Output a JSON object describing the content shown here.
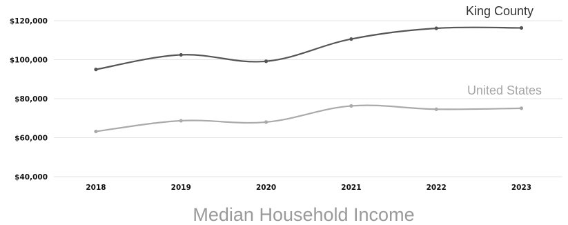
{
  "chart_data": {
    "type": "line",
    "title": "Median Household Income",
    "xlabel": "",
    "ylabel": "",
    "categories": [
      "2018",
      "2019",
      "2020",
      "2021",
      "2022",
      "2023"
    ],
    "ylim": [
      40000,
      120000
    ],
    "yticks": [
      40000,
      60000,
      80000,
      100000,
      120000
    ],
    "ytick_labels": [
      "$40,000",
      "$60,000",
      "$80,000",
      "$100,000",
      "$120,000"
    ],
    "grid": true,
    "legend": "inline labels at right end of lines",
    "series": [
      {
        "name": "King County",
        "values": [
          95000,
          102500,
          99200,
          110600,
          116100,
          116300
        ],
        "color": "#555555"
      },
      {
        "name": "United States",
        "values": [
          63200,
          68700,
          68000,
          76300,
          74600,
          75100
        ],
        "color": "#aaaaaa"
      }
    ]
  }
}
